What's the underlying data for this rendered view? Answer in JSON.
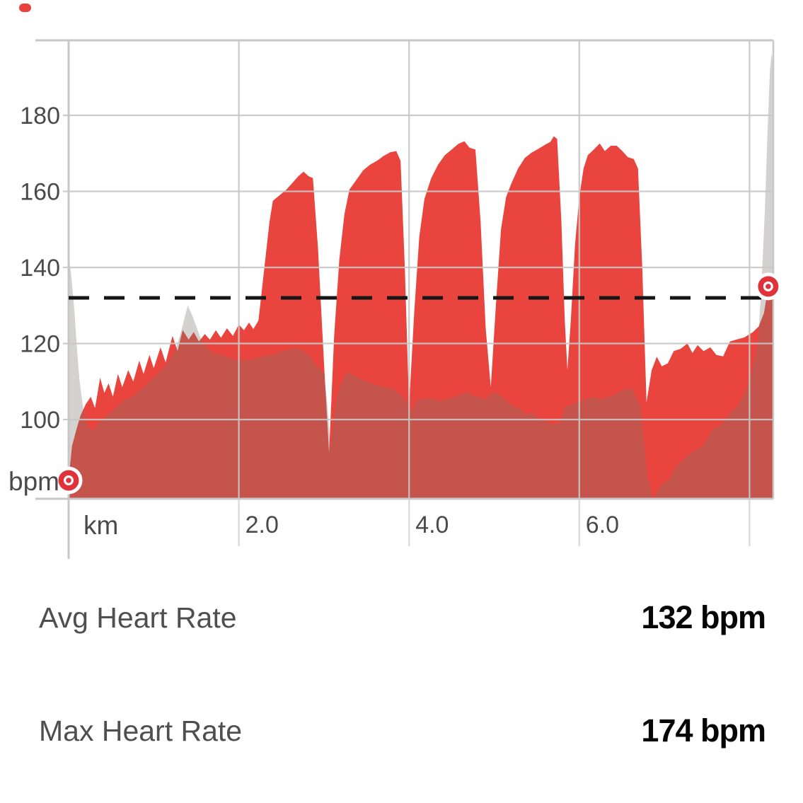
{
  "decorations": {
    "recording_dash": {
      "color": "#e8423c"
    }
  },
  "colors": {
    "heart_rate_red": "#e9453e",
    "background_gray": "#d4d2d0",
    "overlap": "#c4544c",
    "grid": "#c7c7c7",
    "tick_stub": "#dddddd",
    "dash_line": "#161616",
    "marker_red": "#e0323a",
    "axis_label": "#4a4a4a"
  },
  "chart": {
    "y_axis": {
      "unit": "bpm",
      "tick_labels": [
        "180",
        "160",
        "140",
        "120",
        "100"
      ]
    },
    "x_axis": {
      "unit": "km",
      "tick_labels": [
        "2.0",
        "4.0",
        "6.0"
      ]
    }
  },
  "chart_data": {
    "type": "area",
    "title": "",
    "x_unit": "km",
    "y_unit": "bpm",
    "x_range": [
      0,
      8.28
    ],
    "y_axis_ticks": [
      100,
      120,
      140,
      160,
      180
    ],
    "x_axis_ticks": [
      2,
      4,
      6,
      8
    ],
    "x_labeled_ticks": [
      2,
      4,
      6
    ],
    "grid": true,
    "legend": "none",
    "avg_line_bpm": 132,
    "max_bpm": 174,
    "start_marker": {
      "km": 0,
      "bpm": 84
    },
    "end_marker": {
      "km": 8.22,
      "bpm": 135
    },
    "series": [
      {
        "name": "background_metric",
        "points": [
          [
            0,
            143.5
          ],
          [
            0.03,
            138
          ],
          [
            0.07,
            128
          ],
          [
            0.1,
            118
          ],
          [
            0.13,
            110
          ],
          [
            0.17,
            103
          ],
          [
            0.22,
            98.5
          ],
          [
            0.28,
            97
          ],
          [
            0.35,
            99
          ],
          [
            0.45,
            101
          ],
          [
            0.55,
            103
          ],
          [
            0.65,
            105
          ],
          [
            0.75,
            106
          ],
          [
            0.85,
            108
          ],
          [
            0.95,
            110
          ],
          [
            1.05,
            112
          ],
          [
            1.15,
            114.5
          ],
          [
            1.25,
            118
          ],
          [
            1.32,
            123
          ],
          [
            1.4,
            130
          ],
          [
            1.46,
            127
          ],
          [
            1.54,
            122
          ],
          [
            1.62,
            119
          ],
          [
            1.7,
            117.5
          ],
          [
            1.8,
            117
          ],
          [
            1.95,
            115.7
          ],
          [
            2.1,
            115.5
          ],
          [
            2.25,
            116.5
          ],
          [
            2.4,
            117
          ],
          [
            2.55,
            118.3
          ],
          [
            2.7,
            118.8
          ],
          [
            2.82,
            117
          ],
          [
            2.92,
            114
          ],
          [
            3.0,
            112
          ],
          [
            3.04,
            104
          ],
          [
            3.08,
            92.5
          ],
          [
            3.12,
            101
          ],
          [
            3.17,
            107.5
          ],
          [
            3.22,
            110.5
          ],
          [
            3.28,
            112.5
          ],
          [
            3.4,
            111
          ],
          [
            3.55,
            109.5
          ],
          [
            3.7,
            108.6
          ],
          [
            3.82,
            108
          ],
          [
            3.92,
            106
          ],
          [
            3.98,
            104.5
          ],
          [
            4.03,
            102
          ],
          [
            4.1,
            105.3
          ],
          [
            4.22,
            105.6
          ],
          [
            4.34,
            105
          ],
          [
            4.46,
            105.3
          ],
          [
            4.58,
            106.4
          ],
          [
            4.68,
            107
          ],
          [
            4.8,
            106
          ],
          [
            4.9,
            105.5
          ],
          [
            5.0,
            107.2
          ],
          [
            5.1,
            106
          ],
          [
            5.2,
            103.8
          ],
          [
            5.31,
            102.8
          ],
          [
            5.36,
            101.3
          ],
          [
            5.44,
            101.8
          ],
          [
            5.53,
            100.2
          ],
          [
            5.62,
            99.3
          ],
          [
            5.7,
            98.7
          ],
          [
            5.78,
            99.4
          ],
          [
            5.84,
            103.4
          ],
          [
            5.93,
            104
          ],
          [
            6.03,
            105
          ],
          [
            6.15,
            106
          ],
          [
            6.27,
            105.4
          ],
          [
            6.39,
            106.2
          ],
          [
            6.51,
            107.8
          ],
          [
            6.62,
            108.2
          ],
          [
            6.72,
            103.5
          ],
          [
            6.8,
            85
          ],
          [
            6.87,
            79
          ],
          [
            6.95,
            82.5
          ],
          [
            7.05,
            84.2
          ],
          [
            7.15,
            88
          ],
          [
            7.3,
            91
          ],
          [
            7.45,
            93
          ],
          [
            7.57,
            97.5
          ],
          [
            7.67,
            98.6
          ],
          [
            7.77,
            101.8
          ],
          [
            7.87,
            103.7
          ],
          [
            7.95,
            107.5
          ],
          [
            8.02,
            112
          ],
          [
            8.1,
            120.4
          ],
          [
            8.14,
            135
          ],
          [
            8.18,
            155
          ],
          [
            8.21,
            175
          ],
          [
            8.24,
            192
          ],
          [
            8.26,
            196.5
          ],
          [
            8.28,
            192
          ]
        ]
      },
      {
        "name": "heart_rate",
        "points": [
          [
            0,
            84
          ],
          [
            0.04,
            93
          ],
          [
            0.1,
            98
          ],
          [
            0.14,
            101
          ],
          [
            0.2,
            104
          ],
          [
            0.26,
            106
          ],
          [
            0.31,
            103
          ],
          [
            0.37,
            111
          ],
          [
            0.42,
            107
          ],
          [
            0.47,
            109.5
          ],
          [
            0.52,
            106
          ],
          [
            0.58,
            112
          ],
          [
            0.63,
            108.5
          ],
          [
            0.7,
            113
          ],
          [
            0.76,
            110
          ],
          [
            0.83,
            115.5
          ],
          [
            0.88,
            112
          ],
          [
            0.95,
            117
          ],
          [
            1.0,
            113.5
          ],
          [
            1.08,
            119
          ],
          [
            1.14,
            115
          ],
          [
            1.22,
            122
          ],
          [
            1.28,
            118
          ],
          [
            1.34,
            123.5
          ],
          [
            1.41,
            121
          ],
          [
            1.47,
            123
          ],
          [
            1.53,
            120.5
          ],
          [
            1.6,
            122.5
          ],
          [
            1.66,
            121
          ],
          [
            1.73,
            123.5
          ],
          [
            1.79,
            121.5
          ],
          [
            1.86,
            124
          ],
          [
            1.93,
            122
          ],
          [
            2.0,
            125
          ],
          [
            2.06,
            123.5
          ],
          [
            2.12,
            125.5
          ],
          [
            2.17,
            123.8
          ],
          [
            2.23,
            126
          ],
          [
            2.3,
            140
          ],
          [
            2.36,
            152
          ],
          [
            2.4,
            157.5
          ],
          [
            2.48,
            159
          ],
          [
            2.56,
            160.5
          ],
          [
            2.64,
            162.5
          ],
          [
            2.7,
            164
          ],
          [
            2.76,
            165.2
          ],
          [
            2.82,
            164
          ],
          [
            2.87,
            163.5
          ],
          [
            2.93,
            145
          ],
          [
            3.0,
            115
          ],
          [
            3.06,
            91
          ],
          [
            3.12,
            122
          ],
          [
            3.18,
            142
          ],
          [
            3.24,
            154
          ],
          [
            3.3,
            160.5
          ],
          [
            3.38,
            163
          ],
          [
            3.46,
            165.5
          ],
          [
            3.54,
            167
          ],
          [
            3.62,
            168
          ],
          [
            3.7,
            169.3
          ],
          [
            3.78,
            170.3
          ],
          [
            3.85,
            170.6
          ],
          [
            3.9,
            168
          ],
          [
            3.95,
            140
          ],
          [
            4.0,
            103.5
          ],
          [
            4.06,
            128
          ],
          [
            4.12,
            148
          ],
          [
            4.18,
            158
          ],
          [
            4.26,
            163.5
          ],
          [
            4.34,
            167
          ],
          [
            4.42,
            169.5
          ],
          [
            4.5,
            171
          ],
          [
            4.58,
            172.5
          ],
          [
            4.65,
            173.2
          ],
          [
            4.71,
            171.5
          ],
          [
            4.78,
            171
          ],
          [
            4.84,
            152
          ],
          [
            4.9,
            124
          ],
          [
            4.96,
            108.5
          ],
          [
            5.02,
            130
          ],
          [
            5.08,
            150
          ],
          [
            5.14,
            158.5
          ],
          [
            5.2,
            162
          ],
          [
            5.28,
            166
          ],
          [
            5.36,
            168.8
          ],
          [
            5.44,
            170.2
          ],
          [
            5.52,
            171.2
          ],
          [
            5.6,
            172.3
          ],
          [
            5.66,
            173
          ],
          [
            5.7,
            174.5
          ],
          [
            5.74,
            173.8
          ],
          [
            5.79,
            152
          ],
          [
            5.83,
            126
          ],
          [
            5.86,
            113
          ],
          [
            5.9,
            126
          ],
          [
            5.95,
            146
          ],
          [
            6.0,
            158.5
          ],
          [
            6.05,
            166
          ],
          [
            6.1,
            169.5
          ],
          [
            6.17,
            171
          ],
          [
            6.24,
            172.6
          ],
          [
            6.3,
            170.6
          ],
          [
            6.37,
            172
          ],
          [
            6.44,
            172
          ],
          [
            6.51,
            170.5
          ],
          [
            6.57,
            169
          ],
          [
            6.64,
            168.5
          ],
          [
            6.69,
            166
          ],
          [
            6.74,
            140
          ],
          [
            6.79,
            104.5
          ],
          [
            6.85,
            113
          ],
          [
            6.91,
            116.5
          ],
          [
            6.97,
            114
          ],
          [
            7.04,
            114.8
          ],
          [
            7.11,
            118
          ],
          [
            7.19,
            118.6
          ],
          [
            7.27,
            120
          ],
          [
            7.33,
            117.5
          ],
          [
            7.39,
            119.6
          ],
          [
            7.46,
            118
          ],
          [
            7.54,
            119
          ],
          [
            7.61,
            117
          ],
          [
            7.69,
            116.6
          ],
          [
            7.77,
            120.5
          ],
          [
            7.84,
            121
          ],
          [
            7.94,
            121.6
          ],
          [
            8.04,
            123
          ],
          [
            8.11,
            124.5
          ],
          [
            8.17,
            128
          ],
          [
            8.22,
            134.8
          ],
          [
            8.28,
            136
          ]
        ]
      }
    ]
  },
  "stats": {
    "rows": [
      {
        "label": "Avg Heart Rate",
        "value": "132 bpm"
      },
      {
        "label": "Max Heart Rate",
        "value": "174 bpm"
      }
    ]
  }
}
